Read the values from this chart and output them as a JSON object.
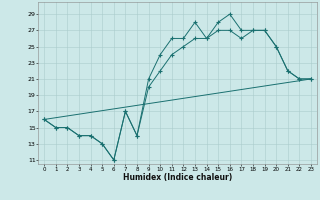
{
  "xlabel": "Humidex (Indice chaleur)",
  "bg_color": "#cce8e8",
  "grid_color": "#aacccc",
  "line_color": "#1a7070",
  "xlim": [
    -0.5,
    23.5
  ],
  "ylim": [
    10.5,
    30.5
  ],
  "xticks": [
    0,
    1,
    2,
    3,
    4,
    5,
    6,
    7,
    8,
    9,
    10,
    11,
    12,
    13,
    14,
    15,
    16,
    17,
    18,
    19,
    20,
    21,
    22,
    23
  ],
  "yticks": [
    11,
    13,
    15,
    17,
    19,
    21,
    23,
    25,
    27,
    29
  ],
  "line1_x": [
    0,
    1,
    2,
    3,
    4,
    5,
    6,
    7,
    8,
    9,
    10,
    11,
    12,
    13,
    14,
    15,
    16,
    17,
    18,
    19,
    20,
    21,
    22,
    23
  ],
  "line1_y": [
    16,
    15,
    15,
    14,
    14,
    13,
    11,
    17,
    14,
    21,
    24,
    26,
    26,
    28,
    26,
    28,
    29,
    27,
    27,
    27,
    25,
    22,
    21,
    21
  ],
  "line2_x": [
    0,
    1,
    2,
    3,
    4,
    5,
    6,
    7,
    8,
    9,
    10,
    11,
    12,
    13,
    14,
    15,
    16,
    17,
    18,
    19,
    20,
    21,
    22,
    23
  ],
  "line2_y": [
    16,
    15,
    15,
    14,
    14,
    13,
    11,
    17,
    14,
    20,
    22,
    24,
    25,
    26,
    26,
    27,
    27,
    26,
    27,
    27,
    25,
    22,
    21,
    21
  ],
  "line3_x": [
    0,
    23
  ],
  "line3_y": [
    16,
    21
  ]
}
